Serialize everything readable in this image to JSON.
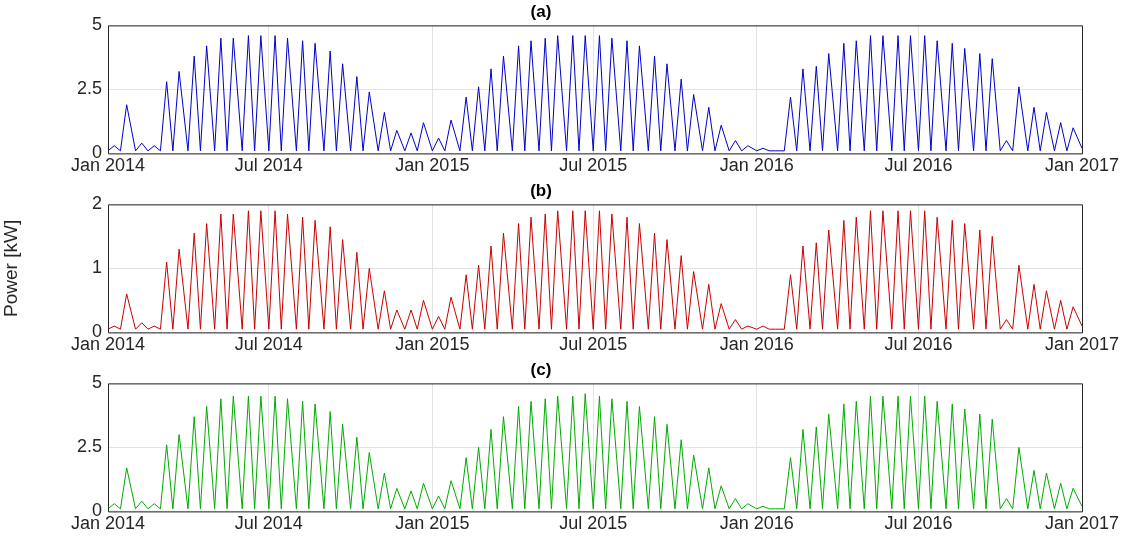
{
  "chart_data": [
    {
      "type": "line",
      "title": "(a)",
      "x": [
        "2014-01-01",
        "2014-01-08",
        "2014-01-15",
        "2014-01-22",
        "2014-02-01",
        "2014-02-08",
        "2014-02-15",
        "2014-02-22",
        "2014-03-01",
        "2014-03-08",
        "2014-03-15",
        "2014-03-22",
        "2014-04-01",
        "2014-04-08",
        "2014-04-15",
        "2014-04-22",
        "2014-05-01",
        "2014-05-08",
        "2014-05-15",
        "2014-05-22",
        "2014-06-01",
        "2014-06-08",
        "2014-06-15",
        "2014-06-22",
        "2014-07-01",
        "2014-07-08",
        "2014-07-15",
        "2014-07-22",
        "2014-08-01",
        "2014-08-08",
        "2014-08-15",
        "2014-08-22",
        "2014-09-01",
        "2014-09-08",
        "2014-09-15",
        "2014-09-22",
        "2014-10-01",
        "2014-10-08",
        "2014-10-15",
        "2014-10-22",
        "2014-11-01",
        "2014-11-08",
        "2014-11-15",
        "2014-11-22",
        "2014-12-01",
        "2014-12-08",
        "2014-12-15",
        "2014-12-22",
        "2015-01-01",
        "2015-01-08",
        "2015-01-15",
        "2015-01-22",
        "2015-02-01",
        "2015-02-08",
        "2015-02-15",
        "2015-02-22",
        "2015-03-01",
        "2015-03-08",
        "2015-03-15",
        "2015-03-22",
        "2015-04-01",
        "2015-04-08",
        "2015-04-15",
        "2015-04-22",
        "2015-05-01",
        "2015-05-08",
        "2015-05-15",
        "2015-05-22",
        "2015-06-01",
        "2015-06-08",
        "2015-06-15",
        "2015-06-22",
        "2015-07-01",
        "2015-07-08",
        "2015-07-15",
        "2015-07-22",
        "2015-08-01",
        "2015-08-08",
        "2015-08-15",
        "2015-08-22",
        "2015-09-01",
        "2015-09-08",
        "2015-09-15",
        "2015-09-22",
        "2015-10-01",
        "2015-10-08",
        "2015-10-15",
        "2015-10-22",
        "2015-11-01",
        "2015-11-08",
        "2015-11-15",
        "2015-11-22",
        "2015-12-01",
        "2015-12-08",
        "2015-12-15",
        "2015-12-22",
        "2016-01-01",
        "2016-01-08",
        "2016-01-15",
        "2016-01-22",
        "2016-02-01",
        "2016-02-08",
        "2016-02-15",
        "2016-02-22",
        "2016-03-01",
        "2016-03-08",
        "2016-03-15",
        "2016-03-22",
        "2016-04-01",
        "2016-04-08",
        "2016-04-15",
        "2016-04-22",
        "2016-05-01",
        "2016-05-08",
        "2016-05-15",
        "2016-05-22",
        "2016-06-01",
        "2016-06-08",
        "2016-06-15",
        "2016-06-22",
        "2016-07-01",
        "2016-07-08",
        "2016-07-15",
        "2016-07-22",
        "2016-08-01",
        "2016-08-08",
        "2016-08-15",
        "2016-08-22",
        "2016-09-01",
        "2016-09-08",
        "2016-09-15",
        "2016-09-22",
        "2016-10-01",
        "2016-10-08",
        "2016-10-15",
        "2016-10-22",
        "2016-11-01",
        "2016-11-08",
        "2016-11-15",
        "2016-11-22",
        "2016-12-01",
        "2016-12-08",
        "2016-12-15",
        "2016-12-22",
        "2017-01-01"
      ],
      "series": [
        {
          "color": "#0000c8",
          "values": [
            0.1,
            0.3,
            0.1,
            1.9,
            0.1,
            0.4,
            0.1,
            0.3,
            0.1,
            2.8,
            0.1,
            3.2,
            0.1,
            3.8,
            0.1,
            4.2,
            0.1,
            4.5,
            0.1,
            4.5,
            0.1,
            4.6,
            0.1,
            4.6,
            0.1,
            4.6,
            0.1,
            4.5,
            0.1,
            4.4,
            0.1,
            4.3,
            0.1,
            4.0,
            0.1,
            3.5,
            0.1,
            3.0,
            0.1,
            2.4,
            0.1,
            1.6,
            0.1,
            0.9,
            0.1,
            0.8,
            0.1,
            1.2,
            0.1,
            0.6,
            0.1,
            1.3,
            0.1,
            2.2,
            0.1,
            2.6,
            0.1,
            3.3,
            0.1,
            3.8,
            0.1,
            4.2,
            0.1,
            4.4,
            0.1,
            4.5,
            0.1,
            4.6,
            0.1,
            4.6,
            0.1,
            4.6,
            0.1,
            4.6,
            0.1,
            4.5,
            0.1,
            4.4,
            0.1,
            4.2,
            0.1,
            3.8,
            0.1,
            3.5,
            0.1,
            2.9,
            0.1,
            2.3,
            0.1,
            1.8,
            0.1,
            1.1,
            0.1,
            0.5,
            0.1,
            0.3,
            0.1,
            0.2,
            0.1,
            0.1,
            0.1,
            2.2,
            0.1,
            3.3,
            0.1,
            3.4,
            0.1,
            3.9,
            0.1,
            4.3,
            0.1,
            4.4,
            0.1,
            4.6,
            0.1,
            4.6,
            0.1,
            4.6,
            0.1,
            4.6,
            0.1,
            4.6,
            0.1,
            4.4,
            0.1,
            4.3,
            0.1,
            4.1,
            0.1,
            3.9,
            0.1,
            3.7,
            0.1,
            0.5,
            0.1,
            2.6,
            0.1,
            1.8,
            0.1,
            1.6,
            0.1,
            1.2,
            0.1,
            1.0,
            0.2
          ]
        }
      ],
      "xlim": [
        "2014-01-01",
        "2017-01-01"
      ],
      "xticks": [
        {
          "value": "2014-01-01",
          "label": "Jan 2014"
        },
        {
          "value": "2014-07-01",
          "label": "Jul 2014"
        },
        {
          "value": "2015-01-01",
          "label": "Jan 2015"
        },
        {
          "value": "2015-07-01",
          "label": "Jul 2015"
        },
        {
          "value": "2016-01-01",
          "label": "Jan 2016"
        },
        {
          "value": "2016-07-01",
          "label": "Jul 2016"
        },
        {
          "value": "2017-01-01",
          "label": "Jan 2017"
        }
      ],
      "ylim": [
        0,
        5
      ],
      "yticks": [
        0,
        2.5,
        5
      ],
      "grid": true
    },
    {
      "type": "line",
      "title": "(b)",
      "ylabel": "Power [kW]",
      "x": [
        "2014-01-01",
        "2014-01-08",
        "2014-01-15",
        "2014-01-22",
        "2014-02-01",
        "2014-02-08",
        "2014-02-15",
        "2014-02-22",
        "2014-03-01",
        "2014-03-08",
        "2014-03-15",
        "2014-03-22",
        "2014-04-01",
        "2014-04-08",
        "2014-04-15",
        "2014-04-22",
        "2014-05-01",
        "2014-05-08",
        "2014-05-15",
        "2014-05-22",
        "2014-06-01",
        "2014-06-08",
        "2014-06-15",
        "2014-06-22",
        "2014-07-01",
        "2014-07-08",
        "2014-07-15",
        "2014-07-22",
        "2014-08-01",
        "2014-08-08",
        "2014-08-15",
        "2014-08-22",
        "2014-09-01",
        "2014-09-08",
        "2014-09-15",
        "2014-09-22",
        "2014-10-01",
        "2014-10-08",
        "2014-10-15",
        "2014-10-22",
        "2014-11-01",
        "2014-11-08",
        "2014-11-15",
        "2014-11-22",
        "2014-12-01",
        "2014-12-08",
        "2014-12-15",
        "2014-12-22",
        "2015-01-01",
        "2015-01-08",
        "2015-01-15",
        "2015-01-22",
        "2015-02-01",
        "2015-02-08",
        "2015-02-15",
        "2015-02-22",
        "2015-03-01",
        "2015-03-08",
        "2015-03-15",
        "2015-03-22",
        "2015-04-01",
        "2015-04-08",
        "2015-04-15",
        "2015-04-22",
        "2015-05-01",
        "2015-05-08",
        "2015-05-15",
        "2015-05-22",
        "2015-06-01",
        "2015-06-08",
        "2015-06-15",
        "2015-06-22",
        "2015-07-01",
        "2015-07-08",
        "2015-07-15",
        "2015-07-22",
        "2015-08-01",
        "2015-08-08",
        "2015-08-15",
        "2015-08-22",
        "2015-09-01",
        "2015-09-08",
        "2015-09-15",
        "2015-09-22",
        "2015-10-01",
        "2015-10-08",
        "2015-10-15",
        "2015-10-22",
        "2015-11-01",
        "2015-11-08",
        "2015-11-15",
        "2015-11-22",
        "2015-12-01",
        "2015-12-08",
        "2015-12-15",
        "2015-12-22",
        "2016-01-01",
        "2016-01-08",
        "2016-01-15",
        "2016-01-22",
        "2016-02-01",
        "2016-02-08",
        "2016-02-15",
        "2016-02-22",
        "2016-03-01",
        "2016-03-08",
        "2016-03-15",
        "2016-03-22",
        "2016-04-01",
        "2016-04-08",
        "2016-04-15",
        "2016-04-22",
        "2016-05-01",
        "2016-05-08",
        "2016-05-15",
        "2016-05-22",
        "2016-06-01",
        "2016-06-08",
        "2016-06-15",
        "2016-06-22",
        "2016-07-01",
        "2016-07-08",
        "2016-07-15",
        "2016-07-22",
        "2016-08-01",
        "2016-08-08",
        "2016-08-15",
        "2016-08-22",
        "2016-09-01",
        "2016-09-08",
        "2016-09-15",
        "2016-09-22",
        "2016-10-01",
        "2016-10-08",
        "2016-10-15",
        "2016-10-22",
        "2016-11-01",
        "2016-11-08",
        "2016-11-15",
        "2016-11-22",
        "2016-12-01",
        "2016-12-08",
        "2016-12-15",
        "2016-12-22",
        "2017-01-01"
      ],
      "series": [
        {
          "color": "#c80000",
          "values": [
            0.05,
            0.1,
            0.05,
            0.6,
            0.05,
            0.15,
            0.05,
            0.1,
            0.05,
            1.1,
            0.05,
            1.3,
            0.05,
            1.55,
            0.05,
            1.7,
            0.05,
            1.85,
            0.05,
            1.85,
            0.05,
            1.9,
            0.05,
            1.9,
            0.05,
            1.9,
            0.05,
            1.85,
            0.05,
            1.8,
            0.05,
            1.75,
            0.05,
            1.65,
            0.05,
            1.45,
            0.05,
            1.25,
            0.05,
            1.0,
            0.05,
            0.65,
            0.05,
            0.35,
            0.05,
            0.35,
            0.05,
            0.5,
            0.05,
            0.25,
            0.05,
            0.55,
            0.05,
            0.9,
            0.05,
            1.05,
            0.05,
            1.35,
            0.05,
            1.55,
            0.05,
            1.7,
            0.05,
            1.8,
            0.05,
            1.85,
            0.05,
            1.9,
            0.05,
            1.9,
            0.05,
            1.9,
            0.05,
            1.9,
            0.05,
            1.85,
            0.05,
            1.8,
            0.05,
            1.7,
            0.05,
            1.55,
            0.05,
            1.45,
            0.05,
            1.2,
            0.05,
            0.95,
            0.05,
            0.75,
            0.05,
            0.45,
            0.05,
            0.2,
            0.05,
            0.1,
            0.05,
            0.1,
            0.05,
            0.05,
            0.05,
            0.9,
            0.05,
            1.35,
            0.05,
            1.4,
            0.05,
            1.6,
            0.05,
            1.75,
            0.05,
            1.8,
            0.05,
            1.9,
            0.05,
            1.9,
            0.05,
            1.9,
            0.05,
            1.9,
            0.05,
            1.9,
            0.05,
            1.8,
            0.05,
            1.75,
            0.05,
            1.7,
            0.05,
            1.6,
            0.05,
            1.5,
            0.05,
            0.2,
            0.05,
            1.05,
            0.05,
            0.75,
            0.05,
            0.65,
            0.05,
            0.5,
            0.05,
            0.4,
            0.1
          ]
        }
      ],
      "xlim": [
        "2014-01-01",
        "2017-01-01"
      ],
      "xticks": [
        {
          "value": "2014-01-01",
          "label": "Jan 2014"
        },
        {
          "value": "2014-07-01",
          "label": "Jul 2014"
        },
        {
          "value": "2015-01-01",
          "label": "Jan 2015"
        },
        {
          "value": "2015-07-01",
          "label": "Jul 2015"
        },
        {
          "value": "2016-01-01",
          "label": "Jan 2016"
        },
        {
          "value": "2016-07-01",
          "label": "Jul 2016"
        },
        {
          "value": "2017-01-01",
          "label": "Jan 2017"
        }
      ],
      "ylim": [
        0,
        2
      ],
      "yticks": [
        0,
        1,
        2
      ],
      "grid": true
    },
    {
      "type": "line",
      "title": "(c)",
      "x": [
        "2014-01-01",
        "2014-01-08",
        "2014-01-15",
        "2014-01-22",
        "2014-02-01",
        "2014-02-08",
        "2014-02-15",
        "2014-02-22",
        "2014-03-01",
        "2014-03-08",
        "2014-03-15",
        "2014-03-22",
        "2014-04-01",
        "2014-04-08",
        "2014-04-15",
        "2014-04-22",
        "2014-05-01",
        "2014-05-08",
        "2014-05-15",
        "2014-05-22",
        "2014-06-01",
        "2014-06-08",
        "2014-06-15",
        "2014-06-22",
        "2014-07-01",
        "2014-07-08",
        "2014-07-15",
        "2014-07-22",
        "2014-08-01",
        "2014-08-08",
        "2014-08-15",
        "2014-08-22",
        "2014-09-01",
        "2014-09-08",
        "2014-09-15",
        "2014-09-22",
        "2014-10-01",
        "2014-10-08",
        "2014-10-15",
        "2014-10-22",
        "2014-11-01",
        "2014-11-08",
        "2014-11-15",
        "2014-11-22",
        "2014-12-01",
        "2014-12-08",
        "2014-12-15",
        "2014-12-22",
        "2015-01-01",
        "2015-01-08",
        "2015-01-15",
        "2015-01-22",
        "2015-02-01",
        "2015-02-08",
        "2015-02-15",
        "2015-02-22",
        "2015-03-01",
        "2015-03-08",
        "2015-03-15",
        "2015-03-22",
        "2015-04-01",
        "2015-04-08",
        "2015-04-15",
        "2015-04-22",
        "2015-05-01",
        "2015-05-08",
        "2015-05-15",
        "2015-05-22",
        "2015-06-01",
        "2015-06-08",
        "2015-06-15",
        "2015-06-22",
        "2015-07-01",
        "2015-07-08",
        "2015-07-15",
        "2015-07-22",
        "2015-08-01",
        "2015-08-08",
        "2015-08-15",
        "2015-08-22",
        "2015-09-01",
        "2015-09-08",
        "2015-09-15",
        "2015-09-22",
        "2015-10-01",
        "2015-10-08",
        "2015-10-15",
        "2015-10-22",
        "2015-11-01",
        "2015-11-08",
        "2015-11-15",
        "2015-11-22",
        "2015-12-01",
        "2015-12-08",
        "2015-12-15",
        "2015-12-22",
        "2016-01-01",
        "2016-01-08",
        "2016-01-15",
        "2016-01-22",
        "2016-02-01",
        "2016-02-08",
        "2016-02-15",
        "2016-02-22",
        "2016-03-01",
        "2016-03-08",
        "2016-03-15",
        "2016-03-22",
        "2016-04-01",
        "2016-04-08",
        "2016-04-15",
        "2016-04-22",
        "2016-05-01",
        "2016-05-08",
        "2016-05-15",
        "2016-05-22",
        "2016-06-01",
        "2016-06-08",
        "2016-06-15",
        "2016-06-22",
        "2016-07-01",
        "2016-07-08",
        "2016-07-15",
        "2016-07-22",
        "2016-08-01",
        "2016-08-08",
        "2016-08-15",
        "2016-08-22",
        "2016-09-01",
        "2016-09-08",
        "2016-09-15",
        "2016-09-22",
        "2016-10-01",
        "2016-10-08",
        "2016-10-15",
        "2016-10-22",
        "2016-11-01",
        "2016-11-08",
        "2016-11-15",
        "2016-11-22",
        "2016-12-01",
        "2016-12-08",
        "2016-12-15",
        "2016-12-22",
        "2017-01-01"
      ],
      "series": [
        {
          "color": "#00aa00",
          "values": [
            0.1,
            0.3,
            0.1,
            1.7,
            0.1,
            0.4,
            0.1,
            0.3,
            0.1,
            2.6,
            0.1,
            3.0,
            0.1,
            3.7,
            0.1,
            4.1,
            0.1,
            4.4,
            0.1,
            4.5,
            0.1,
            4.5,
            0.1,
            4.5,
            0.1,
            4.5,
            0.1,
            4.4,
            0.1,
            4.3,
            0.1,
            4.2,
            0.1,
            3.9,
            0.1,
            3.4,
            0.1,
            2.9,
            0.1,
            2.3,
            0.1,
            1.5,
            0.1,
            0.9,
            0.1,
            0.8,
            0.1,
            1.1,
            0.1,
            0.6,
            0.1,
            1.2,
            0.1,
            2.1,
            0.1,
            2.5,
            0.1,
            3.2,
            0.1,
            3.7,
            0.1,
            4.1,
            0.1,
            4.3,
            0.1,
            4.4,
            0.1,
            4.5,
            0.1,
            4.5,
            0.1,
            4.6,
            0.1,
            4.5,
            0.1,
            4.4,
            0.1,
            4.3,
            0.1,
            4.1,
            0.1,
            3.7,
            0.1,
            3.4,
            0.1,
            2.8,
            0.1,
            2.2,
            0.1,
            1.7,
            0.1,
            1.0,
            0.1,
            0.5,
            0.1,
            0.3,
            0.1,
            0.2,
            0.1,
            0.1,
            0.1,
            2.1,
            0.1,
            3.2,
            0.1,
            3.3,
            0.1,
            3.8,
            0.1,
            4.2,
            0.1,
            4.3,
            0.1,
            4.5,
            0.1,
            4.5,
            0.1,
            4.5,
            0.1,
            4.5,
            0.1,
            4.5,
            0.1,
            4.3,
            0.1,
            4.2,
            0.1,
            4.0,
            0.1,
            3.8,
            0.1,
            3.6,
            0.1,
            0.5,
            0.1,
            2.5,
            0.1,
            1.6,
            0.1,
            1.5,
            0.1,
            1.1,
            0.1,
            0.9,
            0.2
          ]
        }
      ],
      "xlim": [
        "2014-01-01",
        "2017-01-01"
      ],
      "xticks": [
        {
          "value": "2014-01-01",
          "label": "Jan 2014"
        },
        {
          "value": "2014-07-01",
          "label": "Jul 2014"
        },
        {
          "value": "2015-01-01",
          "label": "Jan 2015"
        },
        {
          "value": "2015-07-01",
          "label": "Jul 2015"
        },
        {
          "value": "2016-01-01",
          "label": "Jan 2016"
        },
        {
          "value": "2016-07-01",
          "label": "Jul 2016"
        },
        {
          "value": "2017-01-01",
          "label": "Jan 2017"
        }
      ],
      "ylim": [
        0,
        5
      ],
      "yticks": [
        0,
        2.5,
        5
      ],
      "grid": true
    }
  ]
}
